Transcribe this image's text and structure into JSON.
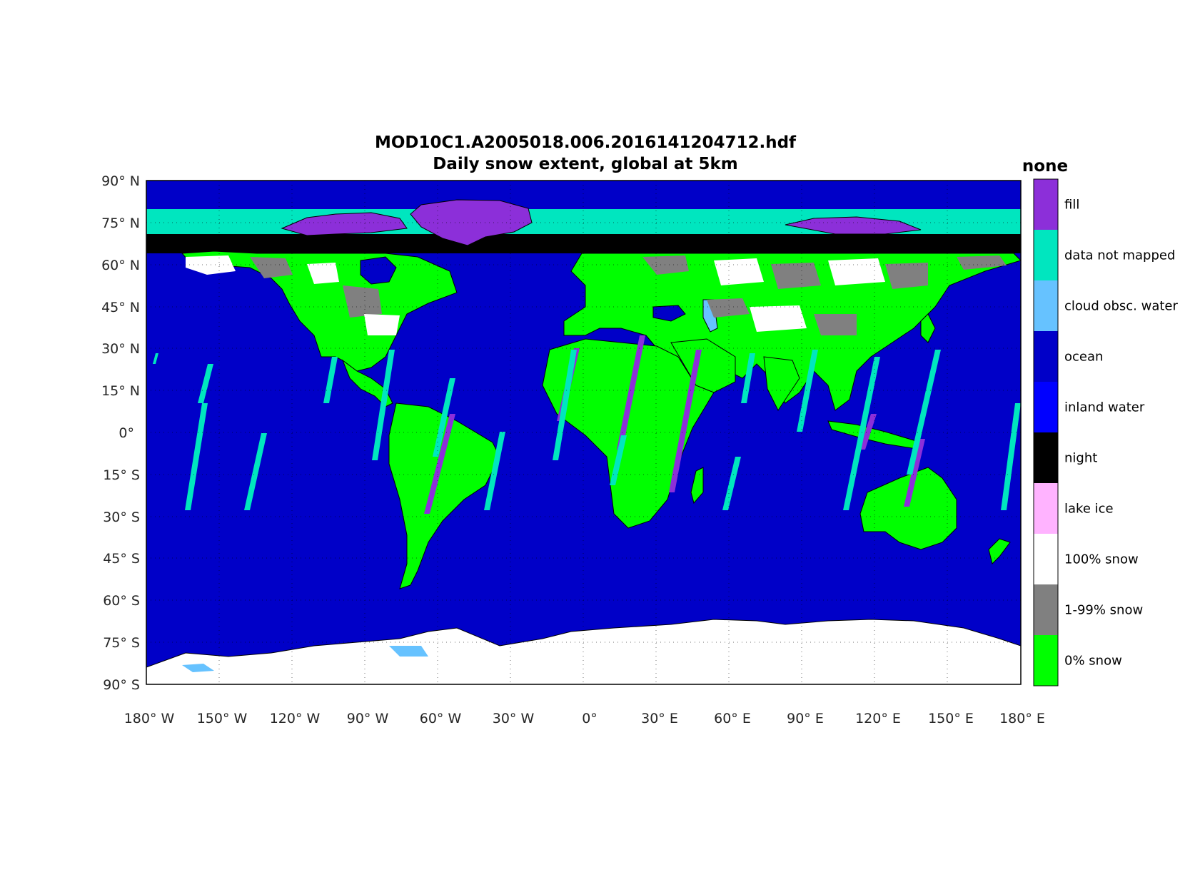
{
  "figure": {
    "title_line1": "MOD10C1.A2005018.006.2016141204712.hdf",
    "title_line2": "Daily snow extent, global at 5km"
  },
  "map": {
    "lat_ticks": [
      "90° N",
      "75° N",
      "60° N",
      "45° N",
      "30° N",
      "15° N",
      "0°",
      "15° S",
      "30° S",
      "45° S",
      "60° S",
      "75° S",
      "90° S"
    ],
    "lon_ticks": [
      "180° W",
      "150° W",
      "120° W",
      "90° W",
      "60° W",
      "30° W",
      "0°",
      "30° E",
      "60° E",
      "90° E",
      "120° E",
      "150° E",
      "180° E"
    ],
    "lat_range": [
      -90,
      90
    ],
    "lon_range": [
      -180,
      180
    ],
    "grid": "dotted"
  },
  "colorbar": {
    "title": "none",
    "classes": [
      {
        "label": "fill",
        "color": "#8c2fd9"
      },
      {
        "label": "data not mapped",
        "color": "#00e6bf"
      },
      {
        "label": "cloud obsc. water",
        "color": "#66c2ff"
      },
      {
        "label": "ocean",
        "color": "#0000c8"
      },
      {
        "label": "inland water",
        "color": "#0000ff"
      },
      {
        "label": "night",
        "color": "#000000"
      },
      {
        "label": "lake ice",
        "color": "#ffb3ff"
      },
      {
        "label": "100% snow",
        "color": "#ffffff"
      },
      {
        "label": "1-99% snow",
        "color": "#808080"
      },
      {
        "label": "0% snow",
        "color": "#00ff00"
      }
    ]
  },
  "colors": {
    "ocean": "#0000c8",
    "land": "#00ff00",
    "snow": "#ffffff",
    "partial_snow": "#808080",
    "night": "#000000",
    "not_mapped": "#00e6bf",
    "fill": "#8c2fd9",
    "cloud_water": "#66c2ff"
  }
}
